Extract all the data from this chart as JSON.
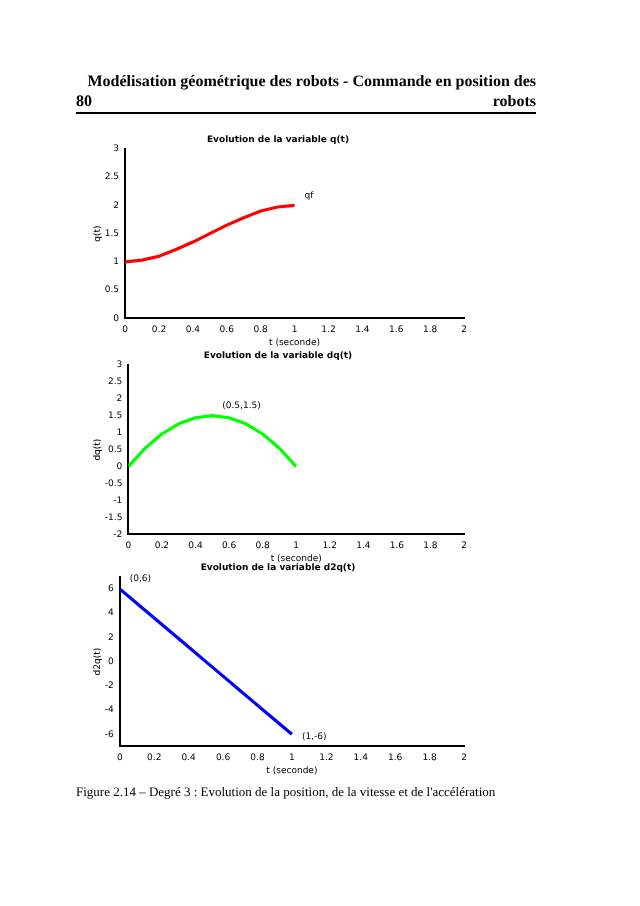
{
  "chart_data": [
    {
      "type": "line",
      "title": "Evolution de la variable q(t)",
      "xlabel": "t (seconde)",
      "ylabel": "q(t)",
      "x": [
        0,
        0.1,
        0.2,
        0.3,
        0.4,
        0.5,
        0.6,
        0.7,
        0.8,
        0.9,
        1
      ],
      "series": [
        {
          "color": "#ff0000",
          "values": [
            1,
            1.03,
            1.1,
            1.22,
            1.35,
            1.5,
            1.65,
            1.78,
            1.9,
            1.97,
            2
          ]
        }
      ],
      "xlim": [
        0,
        2
      ],
      "xticks": [
        0,
        0.2,
        0.4,
        0.6,
        0.8,
        1,
        1.2,
        1.4,
        1.6,
        1.8,
        2
      ],
      "ylim": [
        0,
        3
      ],
      "yticks": [
        0,
        0.5,
        1,
        1.5,
        2,
        2.5,
        3
      ],
      "grid": false,
      "legend": false,
      "marker": "none",
      "annotations": [
        "80",
        "Modélisation géométrique des robots - Commande en position des robots",
        {
          "text": "qf",
          "x": 1,
          "y": 2
        }
      ]
    },
    {
      "type": "line",
      "title": "Evolution de la variable dq(t)",
      "xlabel": "t (seconde)",
      "ylabel": "dq(t)",
      "x": [
        0,
        0.1,
        0.2,
        0.3,
        0.4,
        0.5,
        0.6,
        0.7,
        0.8,
        0.9,
        1
      ],
      "series": [
        {
          "color": "#00ff00",
          "values": [
            0,
            0.54,
            0.96,
            1.26,
            1.44,
            1.5,
            1.44,
            1.26,
            0.96,
            0.54,
            0
          ]
        }
      ],
      "xlim": [
        0,
        2
      ],
      "xticks": [
        0,
        0.2,
        0.4,
        0.6,
        0.8,
        1,
        1.2,
        1.4,
        1.6,
        1.8,
        2
      ],
      "ylim": [
        -2,
        3
      ],
      "yticks": [
        -2,
        -1.5,
        -1,
        -0.5,
        0,
        0.5,
        1,
        1.5,
        2,
        2.5,
        3
      ],
      "grid": false,
      "legend": false,
      "marker": "none",
      "annotations": [
        {
          "text": "(0.5,1.5)",
          "x": 0.5,
          "y": 1.5
        }
      ]
    },
    {
      "type": "line",
      "title": "Evolution de la variable d2q(t)",
      "xlabel": "t (seconde)",
      "ylabel": "d2q(t)",
      "x": [
        0,
        0.1,
        0.2,
        0.3,
        0.4,
        0.5,
        0.6,
        0.7,
        0.8,
        0.9,
        1
      ],
      "series": [
        {
          "color": "#0000ff",
          "values": [
            6,
            4.8,
            3.6,
            2.4,
            1.2,
            0,
            -1.2,
            -2.4,
            -3.6,
            -4.8,
            -6
          ]
        }
      ],
      "xlim": [
        0,
        2
      ],
      "xticks": [
        0,
        0.2,
        0.4,
        0.6,
        0.8,
        1,
        1.2,
        1.4,
        1.6,
        1.8,
        2
      ],
      "ylim": [
        -7,
        7
      ],
      "yticks": [
        -6,
        -4,
        -2,
        0,
        2,
        4,
        6
      ],
      "grid": false,
      "legend": false,
      "marker": "none",
      "annotations": [
        {
          "text": "(0,6)",
          "x": 0,
          "y": 6
        },
        {
          "text": "(1,-6)",
          "x": 1,
          "y": -6
        },
        "Figure 2.14 – Degré 3 : Evolution de la position, de la vitesse et de l'accélération"
      ]
    }
  ]
}
